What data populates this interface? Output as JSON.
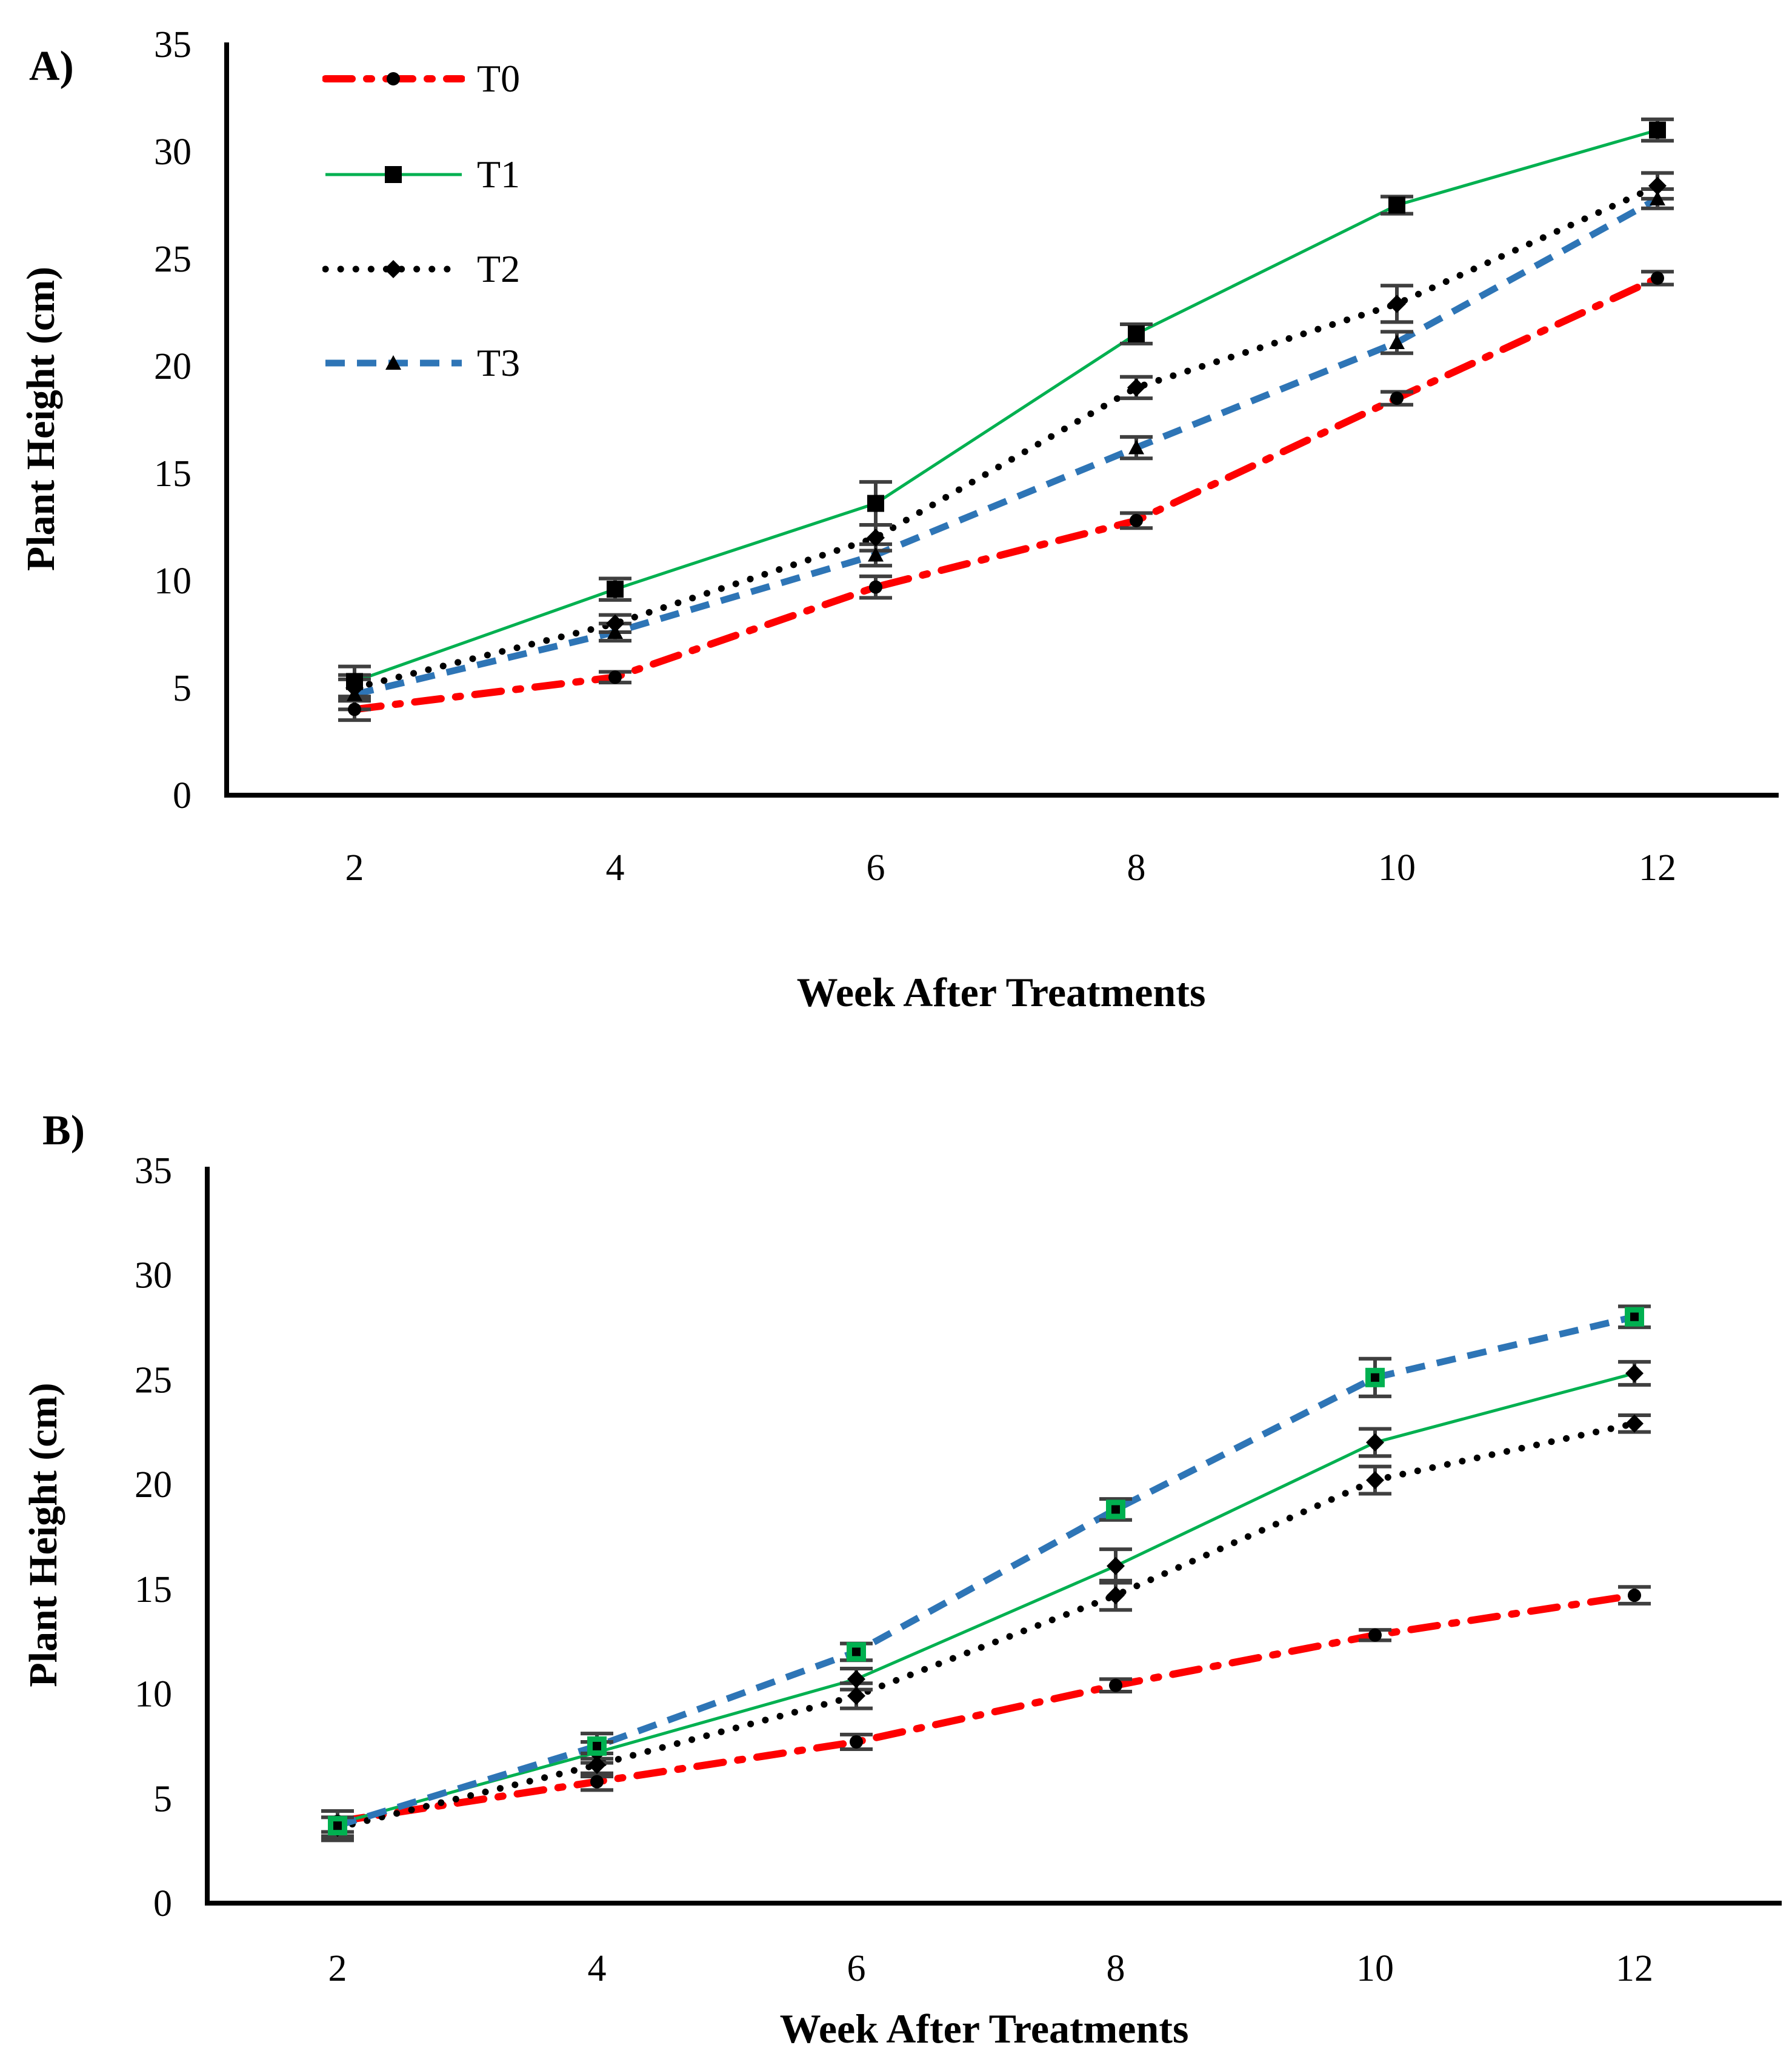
{
  "figure": {
    "error_bar_color": "#3f3f3f",
    "background": "#ffffff",
    "axis_color": "#000000"
  },
  "chart_data": [
    {
      "type": "line",
      "panel_label": "A)",
      "xlabel": "Week After Treatments",
      "ylabel": "Plant Height (cm)",
      "x": [
        2,
        4,
        6,
        8,
        10,
        12
      ],
      "yticks": [
        0,
        5,
        10,
        15,
        20,
        25,
        30,
        35
      ],
      "ylim": [
        0,
        35
      ],
      "grid": false,
      "legend_position": "top-left-inside",
      "series": [
        {
          "name": "T0",
          "color": "#fe0000",
          "line": "dashdot",
          "marker": "circle",
          "values": [
            4.0,
            5.5,
            9.7,
            12.8,
            18.5,
            24.1
          ],
          "errors": [
            0.5,
            0.25,
            0.5,
            0.35,
            0.3,
            0.3
          ]
        },
        {
          "name": "T1",
          "color": "#00b050",
          "line": "solid",
          "marker": "square",
          "values": [
            5.3,
            9.6,
            13.6,
            21.5,
            27.5,
            31.0
          ],
          "errors": [
            0.7,
            0.5,
            1.0,
            0.45,
            0.4,
            0.5
          ]
        },
        {
          "name": "T2",
          "color": "#000000",
          "line": "dotted",
          "marker": "diamond",
          "values": [
            5.0,
            8.0,
            12.0,
            19.0,
            22.9,
            28.4
          ],
          "errors": [
            0.6,
            0.4,
            0.6,
            0.5,
            0.85,
            0.6
          ]
        },
        {
          "name": "T3",
          "color": "#2e75b6",
          "line": "dashed",
          "marker": "triangle",
          "values": [
            4.7,
            7.6,
            11.2,
            16.2,
            21.1,
            27.8
          ],
          "errors": [
            0.7,
            0.4,
            0.5,
            0.5,
            0.5,
            0.45
          ]
        }
      ]
    },
    {
      "type": "line",
      "panel_label": "B)",
      "xlabel": "Week After Treatments",
      "ylabel": "Plant Height (cm)",
      "x": [
        2,
        4,
        6,
        8,
        10,
        12
      ],
      "yticks": [
        0,
        5,
        10,
        15,
        20,
        25,
        30,
        35
      ],
      "ylim": [
        0,
        35
      ],
      "grid": false,
      "legend_position": "none",
      "series": [
        {
          "name": "T0",
          "color": "#fe0000",
          "line": "dashdot",
          "marker": "circle",
          "values": [
            3.9,
            5.8,
            7.7,
            10.4,
            12.8,
            14.7
          ],
          "errors": [
            0.5,
            0.4,
            0.35,
            0.3,
            0.25,
            0.4
          ]
        },
        {
          "name": "T1",
          "color": "#00b050",
          "line": "solid",
          "marker": "diamond",
          "values": [
            3.8,
            7.2,
            10.7,
            16.1,
            22.0,
            25.3
          ],
          "errors": [
            0.6,
            0.5,
            0.5,
            0.8,
            0.65,
            0.55
          ]
        },
        {
          "name": "T2",
          "color": "#000000",
          "line": "dotted",
          "marker": "diamond",
          "values": [
            3.6,
            6.6,
            9.9,
            14.7,
            20.2,
            22.9
          ],
          "errors": [
            0.5,
            0.55,
            0.6,
            0.7,
            0.65,
            0.4
          ]
        },
        {
          "name": "T3",
          "color": "#2e75b6",
          "line": "dashed",
          "marker": "square-green",
          "values": [
            3.7,
            7.5,
            12.0,
            18.8,
            25.1,
            28.0
          ],
          "errors": [
            0.7,
            0.6,
            0.4,
            0.5,
            0.9,
            0.5
          ]
        }
      ]
    }
  ]
}
